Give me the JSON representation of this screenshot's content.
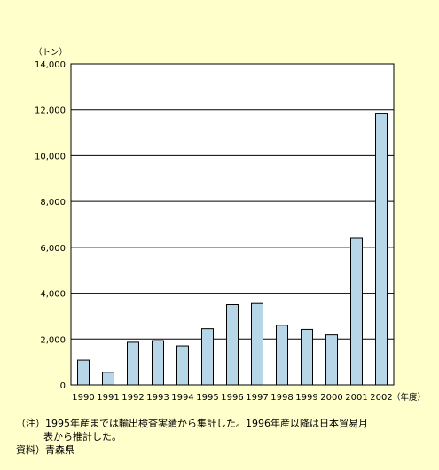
{
  "chart_data": {
    "type": "bar",
    "title": "",
    "ylabel": "（トン）",
    "xlabel": "（年度）",
    "ylim": [
      0,
      14000
    ],
    "yticks": [
      0,
      2000,
      4000,
      6000,
      8000,
      10000,
      12000,
      14000
    ],
    "ytick_labels": [
      "0",
      "2,000",
      "4,000",
      "6,000",
      "8,000",
      "10,000",
      "12,000",
      "14,000"
    ],
    "categories": [
      "1990",
      "1991",
      "1992",
      "1993",
      "1994",
      "1995",
      "1996",
      "1997",
      "1998",
      "1999",
      "2000",
      "2001",
      "2002"
    ],
    "values": [
      1080,
      550,
      1860,
      1930,
      1700,
      2450,
      3500,
      3550,
      2600,
      2420,
      2180,
      6420,
      11850
    ],
    "grid": true,
    "bar_color": "#b7d6e8",
    "plot_background": "#ffffff"
  },
  "notes": {
    "line1": "（注）1995年産までは輸出検査実績から集計した。1996年産以降は日本貿易月",
    "line2": "表から推計した。",
    "line3": "資料）青森県"
  }
}
